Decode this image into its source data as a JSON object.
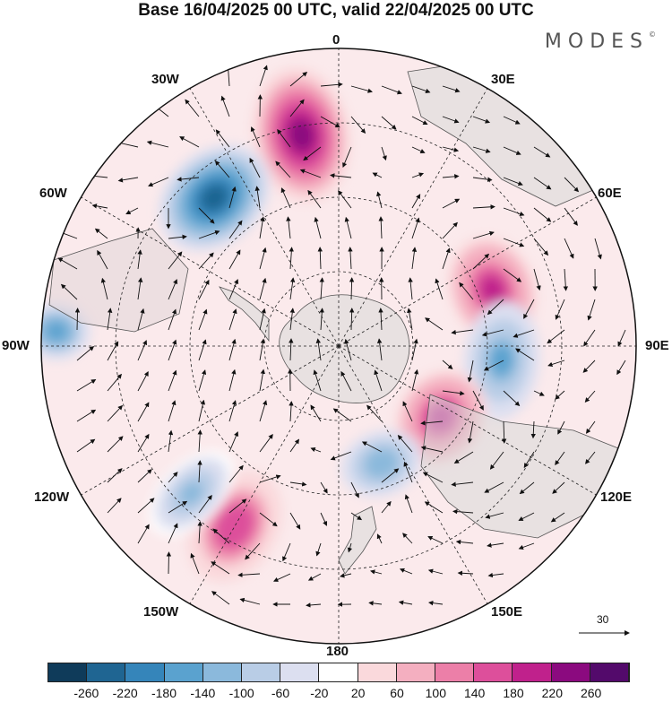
{
  "header": {
    "title": "Base 16/04/2025 00 UTC, valid 22/04/2025 00 UTC",
    "brand": "MODES",
    "brand_mark": "©"
  },
  "map": {
    "projection": "south-polar-stereographic",
    "longitude_labels": {
      "top": "0",
      "top_right": "30E",
      "right_upper": "60E",
      "right": "90E",
      "right_lower": "120E",
      "bottom_right": "150E",
      "bottom": "180",
      "bottom_left": "150W",
      "left_lower": "120W",
      "left": "90W",
      "left_upper": "60W",
      "top_left": "30W"
    },
    "reference_vector": "30",
    "anomaly_centers": [
      {
        "sign": "positive",
        "level": 240,
        "lon_deg": -10
      },
      {
        "sign": "negative",
        "level": -240,
        "lon_deg": -40
      },
      {
        "sign": "negative",
        "level": -160,
        "lon_deg": -87
      },
      {
        "sign": "positive",
        "level": 200,
        "lon_deg": 70
      },
      {
        "sign": "negative",
        "level": -140,
        "lon_deg": 95
      },
      {
        "sign": "positive",
        "level": 200,
        "lon_deg": 125
      },
      {
        "sign": "negative",
        "level": -120,
        "lon_deg": 160
      },
      {
        "sign": "positive",
        "level": 180,
        "lon_deg": -150
      },
      {
        "sign": "negative",
        "level": -100,
        "lon_deg": -135
      }
    ]
  },
  "colorbar": {
    "colors": [
      "#0f3b5a",
      "#1f6592",
      "#3585ba",
      "#5aa2cf",
      "#8bb9dc",
      "#b9cde6",
      "#dcdff0",
      "#ffffff",
      "#fad9dc",
      "#f4afc0",
      "#ec7fa8",
      "#dd4f9b",
      "#c0218c",
      "#8b0a7f",
      "#530a6b"
    ],
    "tick_labels": [
      "-260",
      "-220",
      "-180",
      "-140",
      "-100",
      "-60",
      "-20",
      "20",
      "60",
      "100",
      "140",
      "180",
      "220",
      "260"
    ]
  }
}
